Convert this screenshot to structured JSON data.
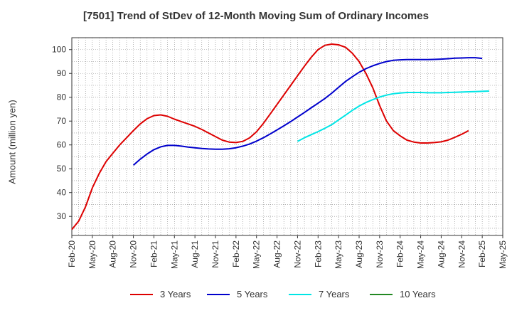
{
  "chart_data": {
    "type": "line",
    "title": "[7501]  Trend of StDev of 12-Month Moving Sum of Ordinary Incomes",
    "xlabel": "",
    "ylabel": "Amount (million yen)",
    "ylim": [
      22,
      105
    ],
    "yticks": [
      30,
      40,
      50,
      60,
      70,
      80,
      90,
      100
    ],
    "x_tick_labels": [
      "Feb-20",
      "May-20",
      "Aug-20",
      "Nov-20",
      "Feb-21",
      "May-21",
      "Aug-21",
      "Nov-21",
      "Feb-22",
      "May-22",
      "Aug-22",
      "Nov-22",
      "Feb-23",
      "May-23",
      "Aug-23",
      "Nov-23",
      "Feb-24",
      "May-24",
      "Aug-24",
      "Nov-24",
      "Feb-25",
      "May-25"
    ],
    "grid": true,
    "legend_position": "bottom",
    "series": [
      {
        "name": "3 Years",
        "color": "#dd0000",
        "start_index": 0,
        "values": [
          24.5,
          28,
          34,
          42,
          48,
          53,
          56.5,
          60,
          63,
          66,
          68.8,
          71,
          72.3,
          72.6,
          72,
          70.8,
          69.8,
          68.8,
          67.8,
          66.5,
          65,
          63.5,
          62,
          61.2,
          61,
          61.5,
          63,
          65.5,
          69,
          73,
          77,
          81,
          85,
          89,
          93,
          96.8,
          100,
          101.8,
          102.3,
          102,
          101,
          98.5,
          95,
          90,
          84,
          76.5,
          70,
          66,
          63.8,
          62,
          61.2,
          60.8,
          60.8,
          61,
          61.3,
          62,
          63.2,
          64.5,
          66
        ]
      },
      {
        "name": "5 Years",
        "color": "#0000cc",
        "start_index": 9,
        "values": [
          51.5,
          54,
          56.2,
          58,
          59.2,
          59.8,
          59.8,
          59.5,
          59.1,
          58.8,
          58.5,
          58.3,
          58.2,
          58.2,
          58.4,
          58.8,
          59.5,
          60.4,
          61.6,
          63,
          64.6,
          66.3,
          68,
          69.8,
          71.7,
          73.6,
          75.6,
          77.5,
          79.5,
          81.7,
          84.2,
          86.6,
          88.6,
          90.5,
          92,
          93.2,
          94.2,
          95,
          95.5,
          95.7,
          95.8,
          95.8,
          95.8,
          95.8,
          95.9,
          96,
          96.2,
          96.4,
          96.5,
          96.6,
          96.6,
          96.3
        ]
      },
      {
        "name": "7 Years",
        "color": "#00e5e5",
        "start_index": 33,
        "values": [
          61.5,
          63,
          64.3,
          65.6,
          67,
          68.5,
          70.5,
          72.5,
          74.5,
          76.3,
          77.8,
          79,
          80.1,
          80.9,
          81.5,
          81.8,
          82,
          82,
          82,
          81.9,
          81.9,
          81.9,
          82,
          82.1,
          82.2,
          82.3,
          82.4,
          82.5,
          82.6
        ]
      },
      {
        "name": "10 Years",
        "color": "#228822",
        "start_index": 0,
        "values": []
      }
    ]
  }
}
